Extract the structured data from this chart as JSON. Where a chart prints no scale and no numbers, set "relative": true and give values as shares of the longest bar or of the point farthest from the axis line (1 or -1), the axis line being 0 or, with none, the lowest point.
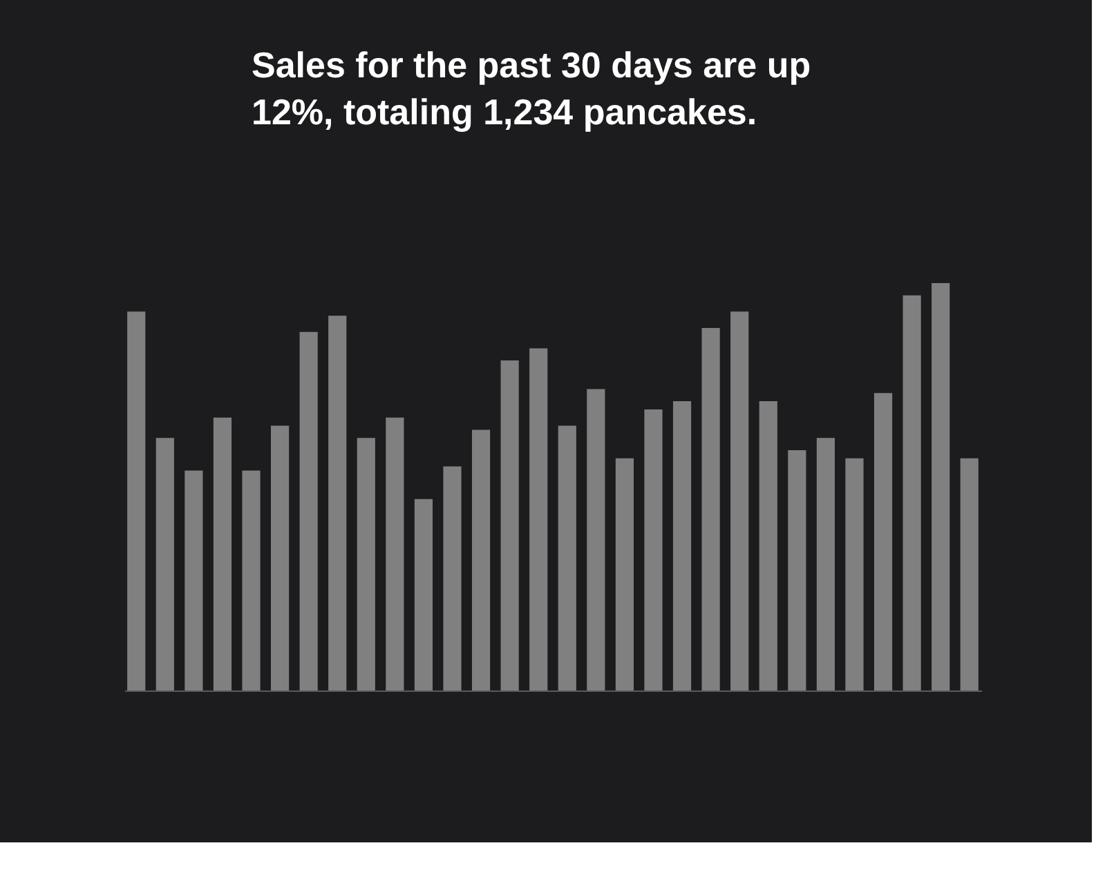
{
  "chart_data": {
    "type": "bar",
    "title": "Sales for the past 30 days are up 12%, totaling 1,234 pancakes.",
    "relative": true,
    "color": "#808080",
    "categories": [
      null,
      null,
      null,
      null,
      null,
      null,
      null,
      null,
      null,
      null,
      null,
      null,
      null,
      null,
      null,
      null,
      null,
      null,
      null,
      null,
      null,
      null,
      null,
      null,
      null,
      null,
      null,
      null,
      null,
      null
    ],
    "values": [
      0.93,
      0.62,
      0.54,
      0.67,
      0.54,
      0.65,
      0.88,
      0.92,
      0.62,
      0.67,
      0.47,
      0.55,
      0.64,
      0.81,
      0.84,
      0.65,
      0.74,
      0.57,
      0.69,
      0.71,
      0.89,
      0.93,
      0.71,
      0.59,
      0.62,
      0.57,
      0.73,
      0.97,
      1,
      0.57
    ]
  }
}
